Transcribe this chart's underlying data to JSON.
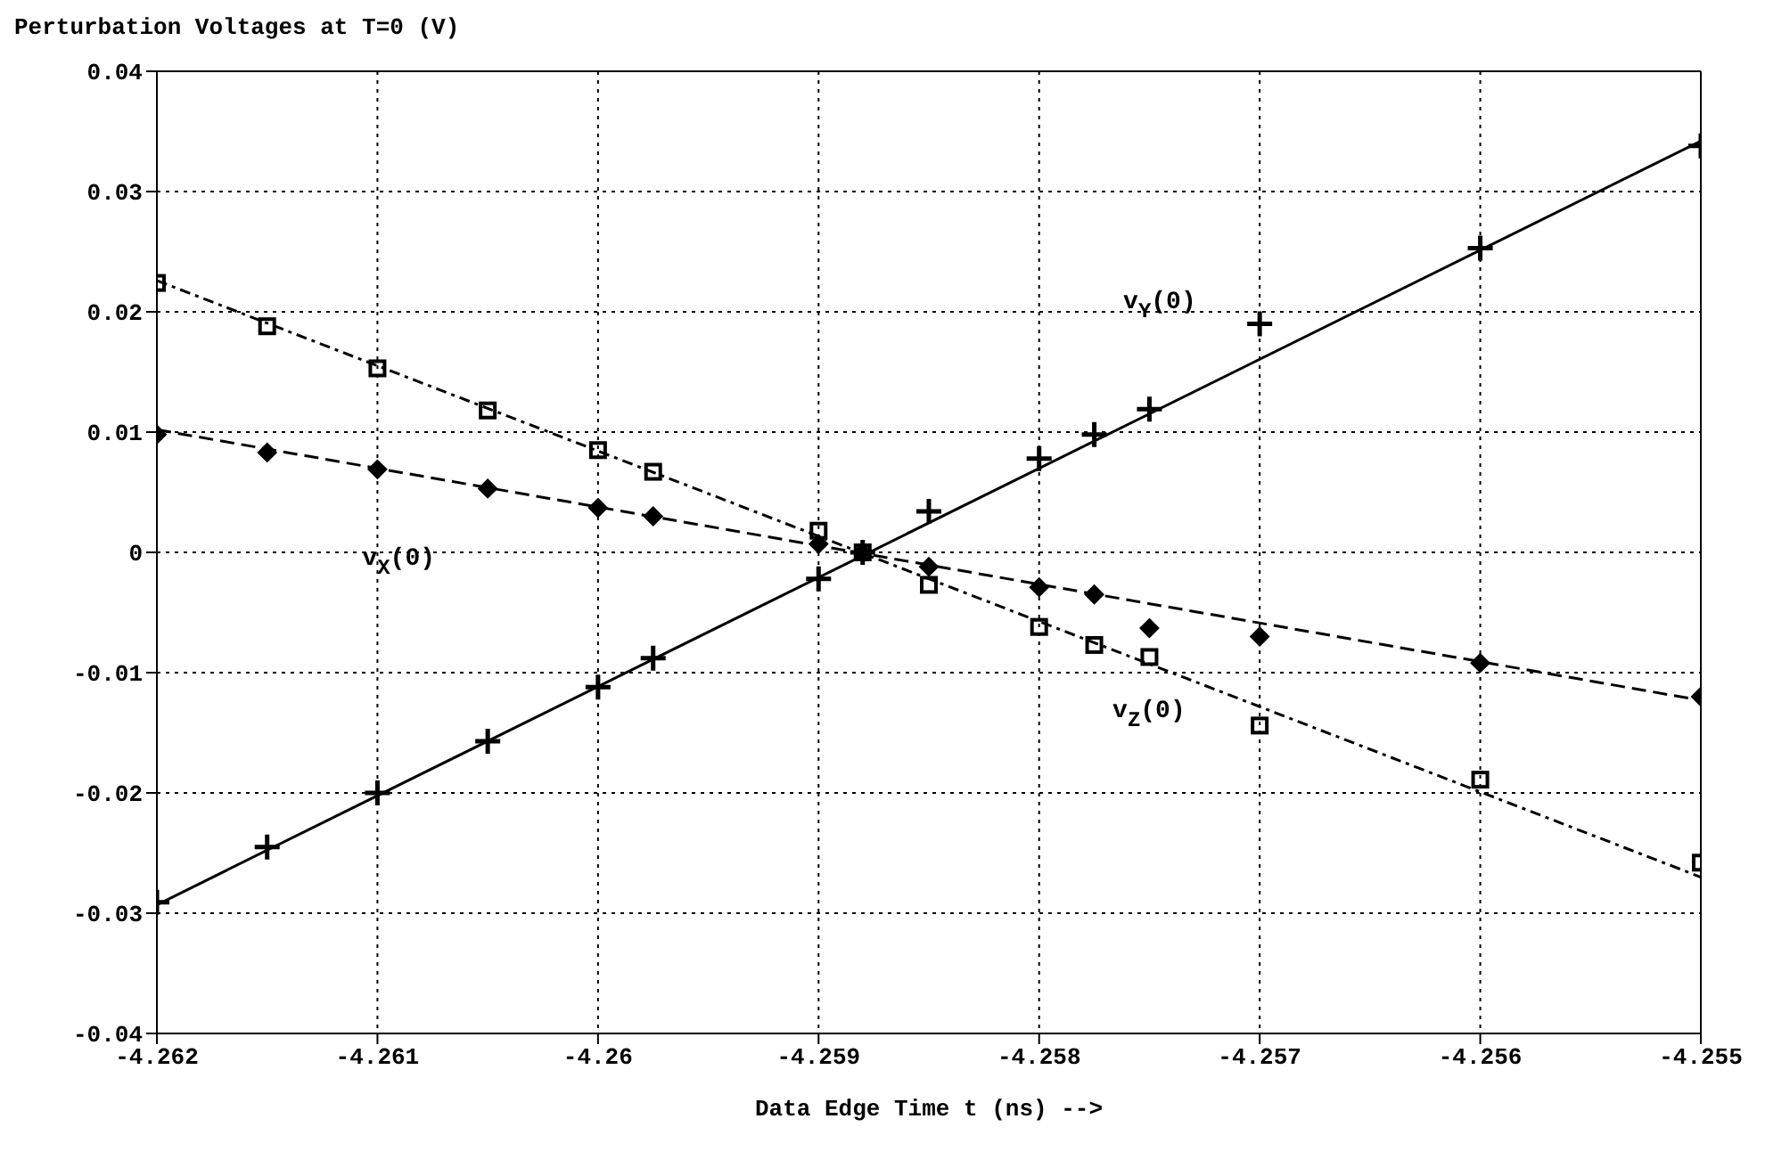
{
  "chart_data": {
    "type": "scatter",
    "ylabel": "Perturbation Voltages at T=0 (V)",
    "xlabel": "Data Edge Time t (ns)  -->",
    "xlim": [
      -4.262,
      -4.255
    ],
    "xticks": [
      -4.262,
      -4.261,
      -4.26,
      -4.259,
      -4.258,
      -4.257,
      -4.256,
      -4.255
    ],
    "ylim": [
      -0.04,
      0.04
    ],
    "yticks": [
      -0.04,
      -0.03,
      -0.02,
      -0.01,
      0,
      0.01,
      0.02,
      0.03,
      0.04
    ],
    "grid": true,
    "series": [
      {
        "type": "line",
        "line_style": "dashed",
        "marker": "none",
        "color": "#000000",
        "x": [
          -4.262,
          -4.255
        ],
        "values": [
          0.0102,
          -0.0123
        ]
      },
      {
        "type": "line",
        "line_style": "solid",
        "marker": "none",
        "color": "#000000",
        "x": [
          -4.262,
          -4.255
        ],
        "values": [
          -0.0293,
          0.0342
        ]
      },
      {
        "type": "line",
        "line_style": "dotted",
        "marker": "none",
        "color": "#000000",
        "x": [
          -4.262,
          -4.255
        ],
        "values": [
          0.0226,
          -0.027
        ]
      },
      {
        "type": "scatter",
        "name": "v$_{Z}$(0)",
        "marker": "square",
        "color": "#000000",
        "x": [
          -4.262,
          -4.2615,
          -4.261,
          -4.2605,
          -4.26,
          -4.25975,
          -4.259,
          -4.2588,
          -4.2585,
          -4.258,
          -4.25775,
          -4.2575,
          -4.257,
          -4.256,
          -4.255
        ],
        "values": [
          0.0224,
          0.0188,
          0.0153,
          0.0118,
          0.0085,
          0.0067,
          0.0018,
          0,
          -0.0027,
          -0.0062,
          -0.0077,
          -0.0087,
          -0.0144,
          -0.0189,
          -0.0258
        ]
      },
      {
        "type": "scatter",
        "name": "v$_{Y}$(0)",
        "marker": "cross",
        "color": "#000000",
        "x": [
          -4.262,
          -4.2615,
          -4.261,
          -4.2605,
          -4.26,
          -4.25975,
          -4.259,
          -4.2588,
          -4.2585,
          -4.258,
          -4.25775,
          -4.2575,
          -4.257,
          -4.256,
          -4.255
        ],
        "values": [
          -0.0291,
          -0.0245,
          -0.02,
          -0.0157,
          -0.0112,
          -0.0088,
          -0.0022,
          0,
          0.0034,
          0.0078,
          0.0098,
          0.0119,
          0.019,
          0.0253,
          0.0338
        ]
      },
      {
        "type": "scatter",
        "name": "v$_{X}$(0)",
        "marker": "diamond",
        "color": "#000000",
        "x": [
          -4.262,
          -4.2615,
          -4.261,
          -4.2605,
          -4.26,
          -4.25975,
          -4.259,
          -4.2588,
          -4.2585,
          -4.258,
          -4.25775,
          -4.2575,
          -4.257,
          -4.256,
          -4.255
        ],
        "values": [
          0.0098,
          0.0083,
          0.0069,
          0.0053,
          0.0037,
          0.003,
          0.0007,
          0,
          -0.0012,
          -0.0029,
          -0.0035,
          -0.0063,
          -0.007,
          -0.0092,
          -0.012
        ]
      }
    ]
  }
}
